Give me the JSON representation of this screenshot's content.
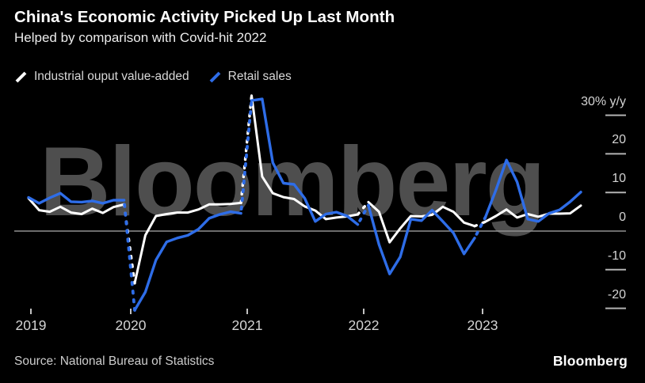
{
  "header": {
    "title": "China's Economic Activity Picked Up Last Month",
    "subtitle": "Helped by comparison with Covid-hit 2022"
  },
  "branding": {
    "watermark": "Bloomberg",
    "logo": "Bloomberg"
  },
  "source": {
    "label": "Source: National Bureau of Statistics"
  },
  "colors": {
    "background": "#000000",
    "industrial_line": "#ffffff",
    "retail_line": "#2e6de8",
    "watermark": "#4e4e4e",
    "axis_text": "#d4d4d4",
    "tick": "#b3b3b3",
    "zero_line": "#8f8f8f"
  },
  "chart_data": {
    "type": "line",
    "unit": "% y/y",
    "title": "China's Economic Activity Picked Up Last Month",
    "subtitle": "Helped by comparison with Covid-hit 2022",
    "legend_position": "top-left",
    "grid": false,
    "ylim": [
      -25,
      38
    ],
    "y_ticks": [
      {
        "value": 30,
        "label": "30% y/y"
      },
      {
        "value": 20,
        "label": "20"
      },
      {
        "value": 10,
        "label": "10"
      },
      {
        "value": 0,
        "label": "0"
      },
      {
        "value": -10,
        "label": "-10"
      },
      {
        "value": -20,
        "label": "-20"
      }
    ],
    "x_year_labels": [
      "2019",
      "2020",
      "2021",
      "2022",
      "2023"
    ],
    "x": [
      "2019-03",
      "2019-04",
      "2019-05",
      "2019-06",
      "2019-07",
      "2019-08",
      "2019-09",
      "2019-10",
      "2019-11",
      "2019-12",
      "2020-01/02",
      "2020-03",
      "2020-04",
      "2020-05",
      "2020-06",
      "2020-07",
      "2020-08",
      "2020-09",
      "2020-10",
      "2020-11",
      "2020-12",
      "2021-01/02",
      "2021-03",
      "2021-04",
      "2021-05",
      "2021-06",
      "2021-07",
      "2021-08",
      "2021-09",
      "2021-10",
      "2021-11",
      "2021-12",
      "2022-01/02",
      "2022-03",
      "2022-04",
      "2022-05",
      "2022-06",
      "2022-07",
      "2022-08",
      "2022-09",
      "2022-10",
      "2022-11",
      "2022-12",
      "2023-01/02",
      "2023-03",
      "2023-04",
      "2023-05",
      "2023-06",
      "2023-07",
      "2023-08",
      "2023-09",
      "2023-10",
      "2023-11"
    ],
    "series": [
      {
        "name": "Industrial ouput value-added",
        "color": "#ffffff",
        "values": [
          8.5,
          5.4,
          5.0,
          6.3,
          4.8,
          4.4,
          5.8,
          4.7,
          6.2,
          6.9,
          -13.5,
          -1.1,
          3.9,
          4.4,
          4.8,
          4.8,
          5.6,
          6.9,
          6.9,
          7.0,
          7.3,
          35.1,
          14.1,
          9.8,
          8.8,
          8.3,
          6.4,
          5.3,
          3.1,
          3.5,
          3.8,
          4.3,
          7.5,
          5.0,
          -2.9,
          0.7,
          3.9,
          3.8,
          4.2,
          6.3,
          5.0,
          2.2,
          1.3,
          2.4,
          3.9,
          5.6,
          3.5,
          4.4,
          3.7,
          4.5,
          4.5,
          4.6,
          6.6
        ]
      },
      {
        "name": "Retail sales",
        "color": "#2e6de8",
        "values": [
          8.7,
          7.2,
          8.6,
          9.8,
          7.6,
          7.5,
          7.8,
          7.2,
          8.0,
          8.0,
          -20.5,
          -15.8,
          -7.5,
          -2.8,
          -1.8,
          -1.1,
          0.5,
          3.3,
          4.3,
          5.0,
          4.6,
          33.8,
          34.2,
          17.7,
          12.4,
          12.1,
          8.5,
          2.5,
          4.4,
          4.9,
          3.9,
          1.7,
          6.7,
          -3.5,
          -11.1,
          -6.7,
          3.1,
          2.7,
          5.4,
          2.5,
          -0.5,
          -5.9,
          -1.8,
          3.5,
          10.6,
          18.4,
          12.7,
          3.1,
          2.5,
          4.6,
          5.5,
          7.6,
          10.1
        ]
      }
    ],
    "dashed_segments": [
      [
        9,
        10
      ],
      [
        20,
        21
      ],
      [
        31,
        32
      ],
      [
        42,
        43
      ]
    ]
  }
}
